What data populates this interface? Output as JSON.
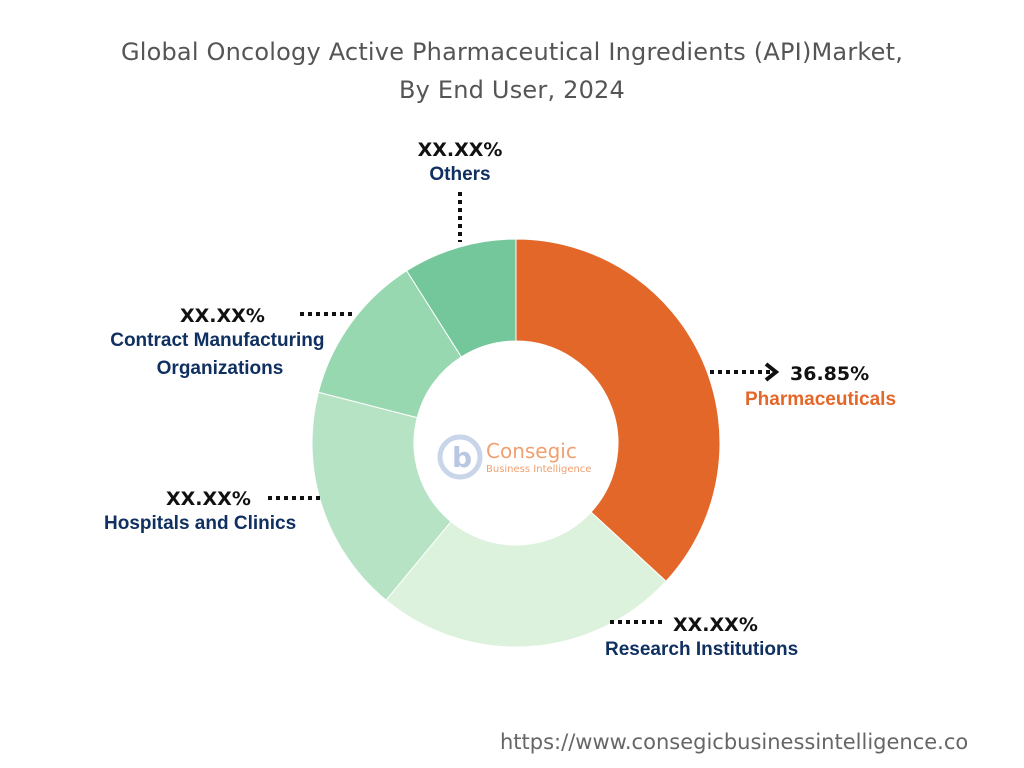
{
  "title_line1": "Global Oncology Active Pharmaceutical Ingredients (API)Market,",
  "title_line2": "By End User, 2024",
  "logo": {
    "name": "Consegic",
    "tagline": "Business Intelligence",
    "brand_color": "#f0a070"
  },
  "source_url": "https://www.consegicbusinessintelligence.co",
  "chart_data": {
    "type": "donut",
    "title": "Global Oncology Active Pharmaceutical Ingredients (API)Market, By End User, 2024",
    "segments": [
      {
        "name": "Pharmaceuticals",
        "label": "36.85%",
        "share": 36.85,
        "color": "#e4672a",
        "label_color": "#e4672a"
      },
      {
        "name": "Research Institutions",
        "label": "XX.XX%",
        "share": 24.15,
        "color": "#dcf2dc",
        "label_color": "#0f3060"
      },
      {
        "name": "Hospitals and Clinics",
        "label": "XX.XX%",
        "share": 18.0,
        "color": "#b7e3c5",
        "label_color": "#0f3060"
      },
      {
        "name": "Contract Manufacturing Organizations",
        "label": "XX.XX%",
        "share": 12.0,
        "color": "#97d8b1",
        "label_color": "#0f3060"
      },
      {
        "name": "Others",
        "label": "XX.XX%",
        "share": 9.0,
        "color": "#74c69b",
        "label_color": "#0f3060"
      }
    ]
  }
}
